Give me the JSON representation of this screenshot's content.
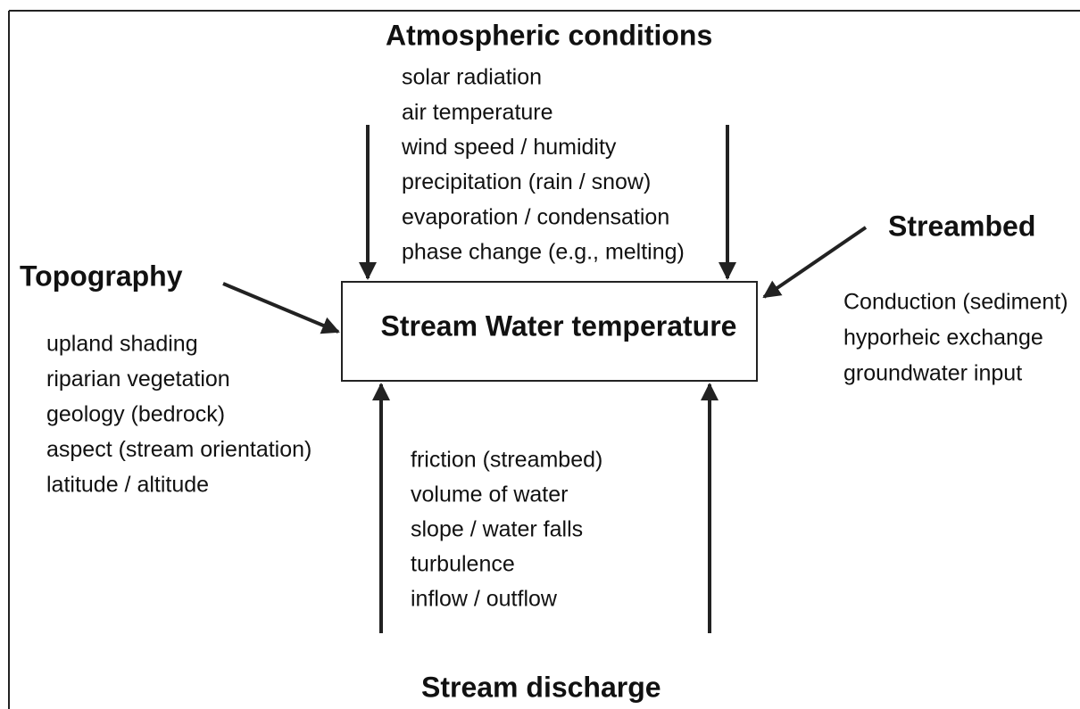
{
  "center": {
    "title": "Stream Water temperature"
  },
  "atmospheric": {
    "title": "Atmospheric conditions",
    "items": [
      "solar radiation",
      "air temperature",
      "wind speed / humidity",
      "precipitation (rain / snow)",
      "evaporation / condensation",
      "phase change (e.g., melting)"
    ]
  },
  "topography": {
    "title": "Topography",
    "items": [
      "upland shading",
      "riparian vegetation",
      "geology (bedrock)",
      "aspect (stream orientation)",
      "latitude / altitude"
    ]
  },
  "streambed": {
    "title": "Streambed",
    "items": [
      "Conduction (sediment)",
      "hyporheic  exchange",
      "groundwater input"
    ]
  },
  "discharge": {
    "title": "Stream discharge",
    "items": [
      "friction (streambed)",
      "volume of water",
      "slope / water falls",
      "turbulence",
      "inflow / outflow"
    ]
  }
}
